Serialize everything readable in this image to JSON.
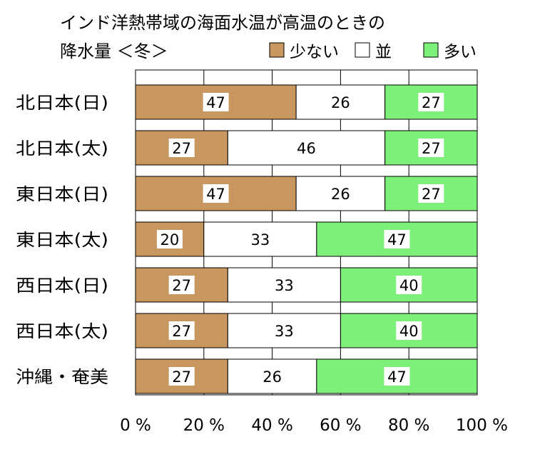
{
  "chart_data": {
    "type": "bar",
    "stacked": true,
    "orientation": "horizontal",
    "percent": true,
    "title_line1": "インド洋熱帯域の海面水温が高温のときの",
    "title_line2": "降水量 ＜冬＞",
    "categories": [
      "北日本(日)",
      "北日本(太)",
      "東日本(日)",
      "東日本(太)",
      "西日本(日)",
      "西日本(太)",
      "沖縄・奄美"
    ],
    "series": [
      {
        "name": "少ない",
        "color": "#c8965f",
        "values": [
          47,
          27,
          47,
          20,
          27,
          27,
          27
        ]
      },
      {
        "name": "並",
        "color": "#ffffff",
        "values": [
          26,
          46,
          26,
          33,
          33,
          33,
          26
        ]
      },
      {
        "name": "多い",
        "color": "#7df07a",
        "values": [
          27,
          27,
          27,
          47,
          40,
          40,
          47
        ]
      }
    ],
    "xlim": [
      0,
      100
    ],
    "xticks": [
      "0 %",
      "20 %",
      "40 %",
      "60 %",
      "80 %",
      "100 %"
    ],
    "grid": true,
    "legend_position": "top-right"
  }
}
